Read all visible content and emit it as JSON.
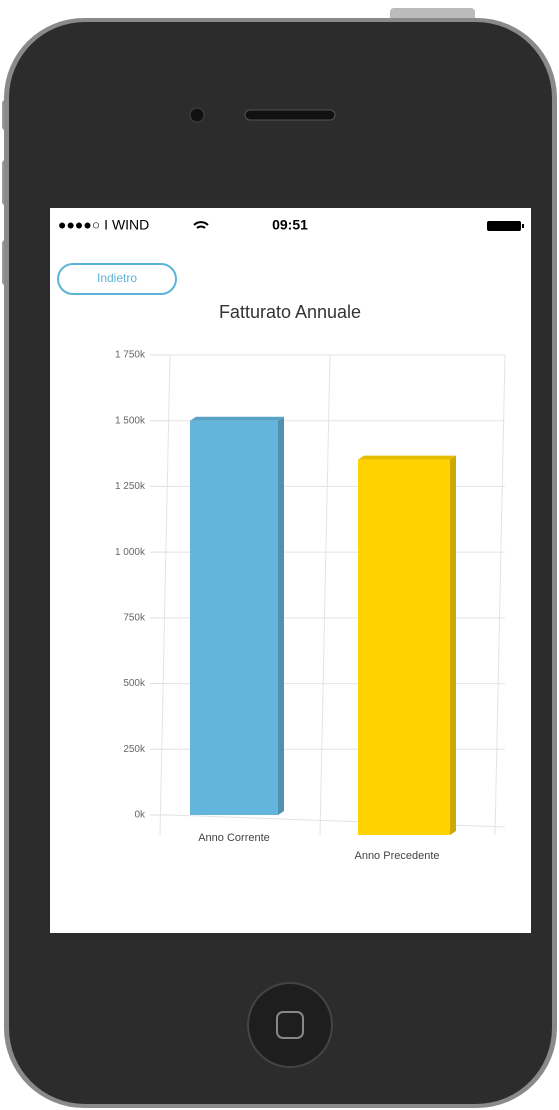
{
  "status_bar": {
    "carrier": "●●●●○ I WIND",
    "time": "09:51"
  },
  "back_button": {
    "label": "Indietro"
  },
  "chart_data": {
    "type": "bar",
    "title": "Fatturato Annuale",
    "categories": [
      "Anno Corrente",
      "Anno Precedente"
    ],
    "series": [
      {
        "name": "Fatturato",
        "values": [
          1500000,
          1375000
        ]
      }
    ],
    "colors": [
      "#64b5dc",
      "#ffd200"
    ],
    "ylim": [
      0,
      1750000
    ],
    "yticks": [
      {
        "value": 0,
        "label": "0k"
      },
      {
        "value": 250000,
        "label": "250k"
      },
      {
        "value": 500000,
        "label": "500k"
      },
      {
        "value": 750000,
        "label": "750k"
      },
      {
        "value": 1000000,
        "label": "1 000k"
      },
      {
        "value": 1250000,
        "label": "1 250k"
      },
      {
        "value": 1500000,
        "label": "1 500k"
      },
      {
        "value": 1750000,
        "label": "1 750k"
      }
    ],
    "grid": true
  }
}
